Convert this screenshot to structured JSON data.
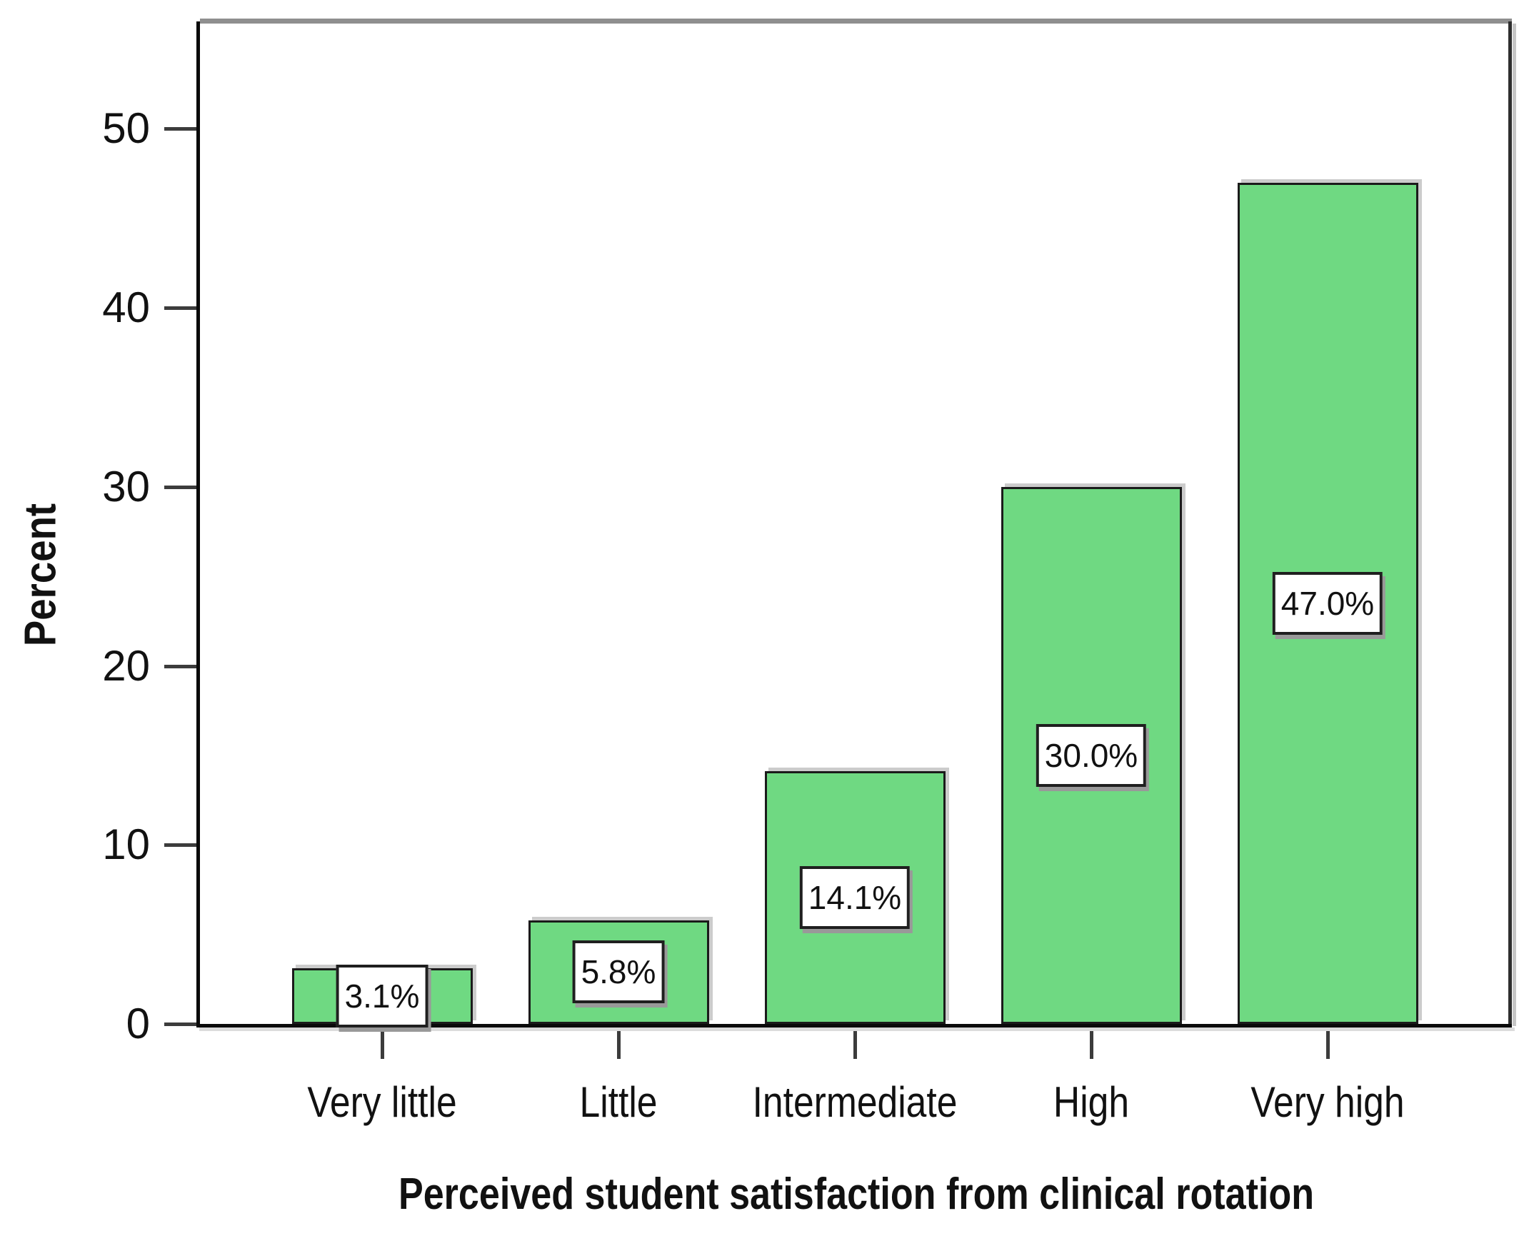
{
  "figure": {
    "kind": "statistical bar chart",
    "background": "#ffffff"
  },
  "chart_data": {
    "type": "bar",
    "title": "",
    "categories": [
      "Very little",
      "Little",
      "Intermediate",
      "High",
      "Very high"
    ],
    "values": [
      3.1,
      5.8,
      14.1,
      30.0,
      47.0
    ],
    "bar_value_labels": [
      "3.1%",
      "5.8%",
      "14.1%",
      "30.0%",
      "47.0%"
    ],
    "xlabel": "Perceived student satisfaction from clinical rotation",
    "ylabel": "Percent",
    "ylim": [
      0,
      56
    ],
    "yticks": [
      0,
      10,
      20,
      30,
      40,
      50
    ],
    "grid": false,
    "legend_position": "none",
    "colors": {
      "bar_fill": "#6fd982",
      "bar_border": "#1b1b1b",
      "bar_shadow": "#cccccc",
      "label_box_fill": "#ffffff",
      "label_box_border": "#1f1f1f",
      "label_box_shadow": "#999999",
      "axis_line": "#0a0a0a",
      "top_frame_line": "#8f8f8f",
      "right_frame_line": "#2f2f2f",
      "frame_shadow": "#c6c6c6",
      "tick_mark": "#3c3c3c",
      "text": "#111111"
    }
  }
}
